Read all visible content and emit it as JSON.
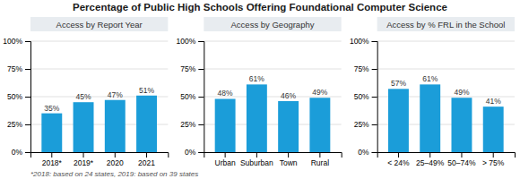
{
  "chart_data": [
    {
      "type": "bar",
      "title": "Percentage of Public High Schools Offering Foundational Computer Science",
      "annotations": [
        "*2018: based on 24 states, 2019: based on 39 states"
      ],
      "subtitle": "Access by Report Year",
      "categories": [
        "2018*",
        "2019*",
        "2020",
        "2021"
      ],
      "values": [
        35,
        45,
        47,
        51
      ],
      "value_labels": [
        "35%",
        "45%",
        "47%",
        "51%"
      ],
      "data_labels": true,
      "color": "#1b9dd9",
      "ylim": [
        0,
        100
      ],
      "yticks": [
        {
          "value": 0,
          "label": "0%"
        },
        {
          "value": 25,
          "label": "25%"
        },
        {
          "value": 50,
          "label": "50%"
        },
        {
          "value": 75,
          "label": "75%"
        },
        {
          "value": 100,
          "label": "100%"
        }
      ],
      "grid": true
    },
    {
      "type": "bar",
      "subtitle": "Access by Geography",
      "categories": [
        "Urban",
        "Suburban",
        "Town",
        "Rural"
      ],
      "values": [
        48,
        61,
        46,
        49
      ],
      "value_labels": [
        "48%",
        "61%",
        "46%",
        "49%"
      ],
      "data_labels": true,
      "color": "#1b9dd9",
      "ylim": [
        0,
        100
      ],
      "yticks": [
        {
          "value": 0,
          "label": "0%"
        },
        {
          "value": 25,
          "label": "25%"
        },
        {
          "value": 50,
          "label": "50%"
        },
        {
          "value": 75,
          "label": "75%"
        },
        {
          "value": 100,
          "label": "100%"
        }
      ],
      "grid": true
    },
    {
      "type": "bar",
      "subtitle": "Access by % FRL in the School",
      "categories": [
        "< 24%",
        "25–49%",
        "50–74%",
        "> 75%"
      ],
      "values": [
        57,
        61,
        49,
        41
      ],
      "value_labels": [
        "57%",
        "61%",
        "49%",
        "41%"
      ],
      "data_labels": true,
      "color": "#1b9dd9",
      "ylim": [
        0,
        100
      ],
      "yticks": [
        {
          "value": 0,
          "label": "0%"
        },
        {
          "value": 25,
          "label": "25%"
        },
        {
          "value": 50,
          "label": "50%"
        },
        {
          "value": 75,
          "label": "75%"
        },
        {
          "value": 100,
          "label": "100%"
        }
      ],
      "grid": true
    }
  ]
}
